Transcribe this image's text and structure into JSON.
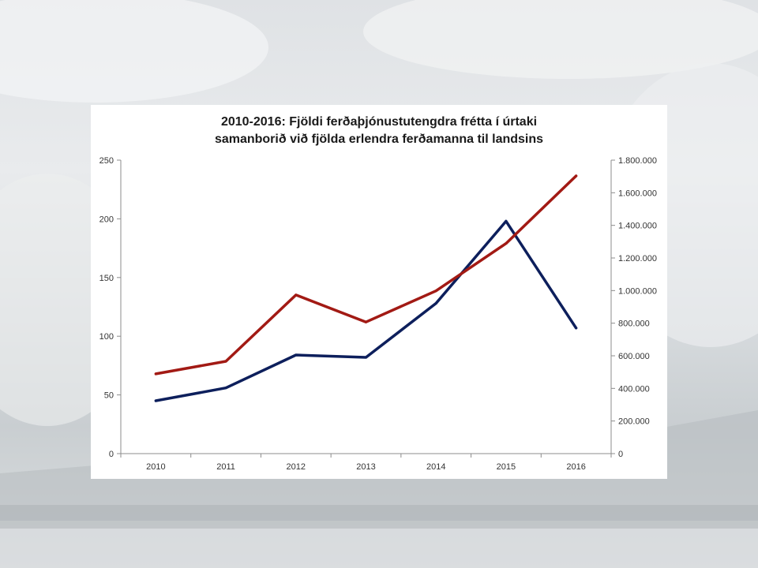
{
  "chart_data": {
    "type": "line",
    "title_lines": [
      "2010-2016: Fjöldi ferðaþjónustutengdra frétta í úrtaki",
      "samanborið við fjölda erlendra ferðamanna til landsins"
    ],
    "categories": [
      "2010",
      "2011",
      "2012",
      "2013",
      "2014",
      "2015",
      "2016"
    ],
    "y_left": {
      "range": [
        0,
        250
      ],
      "ticks": [
        0,
        50,
        100,
        150,
        200,
        250
      ],
      "tick_labels": [
        "0",
        "50",
        "100",
        "150",
        "200",
        "250"
      ]
    },
    "y_right": {
      "range": [
        0,
        1800000
      ],
      "ticks": [
        0,
        200000,
        400000,
        600000,
        800000,
        1000000,
        1200000,
        1400000,
        1600000,
        1800000
      ],
      "tick_labels": [
        "0",
        "200.000",
        "400.000",
        "600.000",
        "800.000",
        "1.000.000",
        "1.200.000",
        "1.400.000",
        "1.600.000",
        "1.800.000"
      ]
    },
    "series": [
      {
        "axis": "left",
        "color": "#0d1f5c",
        "values": [
          45,
          56,
          84,
          82,
          128,
          198,
          107
        ]
      },
      {
        "axis": "right",
        "color": "#a21a14",
        "values": [
          489000,
          566000,
          973000,
          807000,
          998000,
          1289000,
          1703000
        ]
      }
    ],
    "grid": false,
    "legend": "none"
  }
}
